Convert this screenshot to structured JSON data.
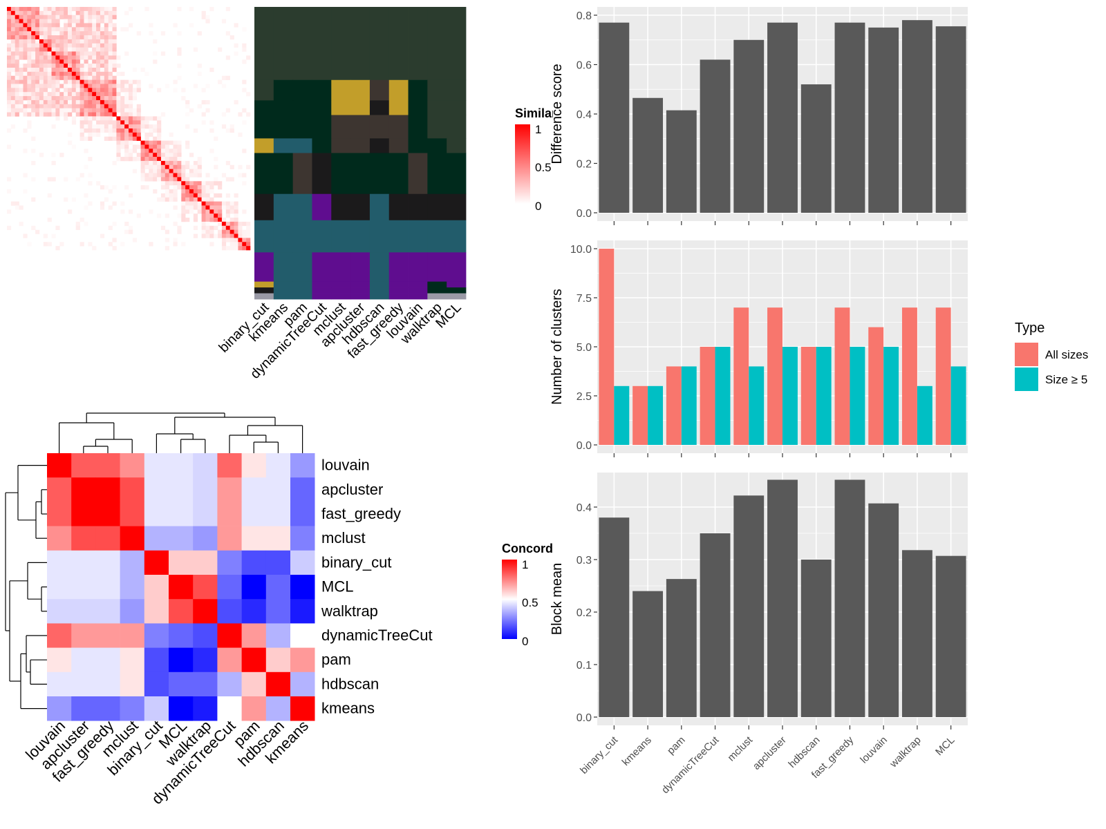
{
  "chart_data": [
    {
      "type": "heatmap",
      "panel": "similarity-heatmap",
      "legend": {
        "title": "Similarity",
        "ticks": [
          "1",
          "0.5",
          "0"
        ]
      }
    },
    {
      "type": "heatmap",
      "panel": "cluster-assignment",
      "categories": [
        "binary_cut",
        "kmeans",
        "pam",
        "dynamicTreeCut",
        "mclust",
        "apcluster",
        "hdbscan",
        "fast_greedy",
        "louvain",
        "walktrap",
        "MCL"
      ]
    },
    {
      "type": "heatmap",
      "panel": "concordance",
      "rows": [
        "louvain",
        "apcluster",
        "fast_greedy",
        "mclust",
        "binary_cut",
        "MCL",
        "walktrap",
        "dynamicTreeCut",
        "pam",
        "hdbscan",
        "kmeans"
      ],
      "columns": [
        "louvain",
        "apcluster",
        "fast_greedy",
        "mclust",
        "binary_cut",
        "MCL",
        "walktrap",
        "dynamicTreeCut",
        "pam",
        "hdbscan",
        "kmeans"
      ],
      "values": [
        [
          1.0,
          0.82,
          0.82,
          0.72,
          0.45,
          0.45,
          0.42,
          0.8,
          0.55,
          0.45,
          0.3
        ],
        [
          0.82,
          1.0,
          1.0,
          0.85,
          0.45,
          0.45,
          0.42,
          0.7,
          0.45,
          0.45,
          0.2
        ],
        [
          0.82,
          1.0,
          1.0,
          0.85,
          0.45,
          0.45,
          0.42,
          0.7,
          0.45,
          0.45,
          0.2
        ],
        [
          0.72,
          0.85,
          0.85,
          1.0,
          0.35,
          0.35,
          0.3,
          0.7,
          0.55,
          0.55,
          0.25
        ],
        [
          0.45,
          0.45,
          0.45,
          0.35,
          1.0,
          0.6,
          0.6,
          0.25,
          0.15,
          0.15,
          0.4
        ],
        [
          0.45,
          0.45,
          0.45,
          0.35,
          0.6,
          1.0,
          0.85,
          0.2,
          0.0,
          0.2,
          0.0
        ],
        [
          0.42,
          0.42,
          0.42,
          0.3,
          0.6,
          0.85,
          1.0,
          0.15,
          0.08,
          0.2,
          0.05
        ],
        [
          0.8,
          0.7,
          0.7,
          0.7,
          0.25,
          0.2,
          0.15,
          1.0,
          0.7,
          0.35,
          0.5
        ],
        [
          0.55,
          0.45,
          0.45,
          0.55,
          0.15,
          0.0,
          0.08,
          0.7,
          1.0,
          0.6,
          0.7
        ],
        [
          0.45,
          0.45,
          0.45,
          0.55,
          0.15,
          0.2,
          0.2,
          0.35,
          0.6,
          1.0,
          0.35
        ],
        [
          0.3,
          0.2,
          0.2,
          0.25,
          0.4,
          0.0,
          0.05,
          0.5,
          0.7,
          0.35,
          1.0
        ]
      ],
      "legend": {
        "title": "Concordance",
        "ticks": [
          "1",
          "0.5",
          "0"
        ]
      }
    },
    {
      "type": "bar",
      "panel": "difference-score",
      "categories": [
        "binary_cut",
        "kmeans",
        "pam",
        "dynamicTreeCut",
        "mclust",
        "apcluster",
        "hdbscan",
        "fast_greedy",
        "louvain",
        "walktrap",
        "MCL"
      ],
      "values": [
        0.77,
        0.465,
        0.415,
        0.62,
        0.7,
        0.77,
        0.52,
        0.77,
        0.75,
        0.78,
        0.755
      ],
      "ylabel": "Difference score",
      "ylim": [
        0,
        0.8
      ],
      "yticks": [
        "0.0",
        "0.2",
        "0.4",
        "0.6",
        "0.8"
      ]
    },
    {
      "type": "bar",
      "panel": "number-of-clusters",
      "categories": [
        "binary_cut",
        "kmeans",
        "pam",
        "dynamicTreeCut",
        "mclust",
        "apcluster",
        "hdbscan",
        "fast_greedy",
        "louvain",
        "walktrap",
        "MCL"
      ],
      "series": [
        {
          "name": "All sizes",
          "values": [
            10,
            3,
            4,
            5,
            7,
            7,
            5,
            7,
            6,
            7,
            7
          ]
        },
        {
          "name": "Size ≥ 5",
          "values": [
            3,
            3,
            4,
            5,
            4,
            5,
            5,
            5,
            5,
            3,
            4
          ]
        }
      ],
      "ylabel": "Number of clusters",
      "ylim": [
        0,
        10
      ],
      "yticks": [
        "0.0",
        "2.5",
        "5.0",
        "7.5",
        "10.0"
      ],
      "legend": {
        "title": "Type",
        "position": "right"
      }
    },
    {
      "type": "bar",
      "panel": "block-mean",
      "categories": [
        "binary_cut",
        "kmeans",
        "pam",
        "dynamicTreeCut",
        "mclust",
        "apcluster",
        "hdbscan",
        "fast_greedy",
        "louvain",
        "walktrap",
        "MCL"
      ],
      "values": [
        0.38,
        0.24,
        0.263,
        0.35,
        0.422,
        0.452,
        0.3,
        0.452,
        0.407,
        0.318,
        0.307
      ],
      "ylabel": "Block mean",
      "ylim": [
        0,
        0.45
      ],
      "yticks": [
        "0.0",
        "0.1",
        "0.2",
        "0.3",
        "0.4"
      ]
    }
  ],
  "colors": {
    "bar": "#595959",
    "panel_bg": "#ebebeb",
    "grid": "#ffffff",
    "all_sizes": "#f8766d",
    "size_ge5": "#00bfc4",
    "heat_high": "#ff0000",
    "heat_low": "#ffffff",
    "conc_low": "#0000ff"
  }
}
